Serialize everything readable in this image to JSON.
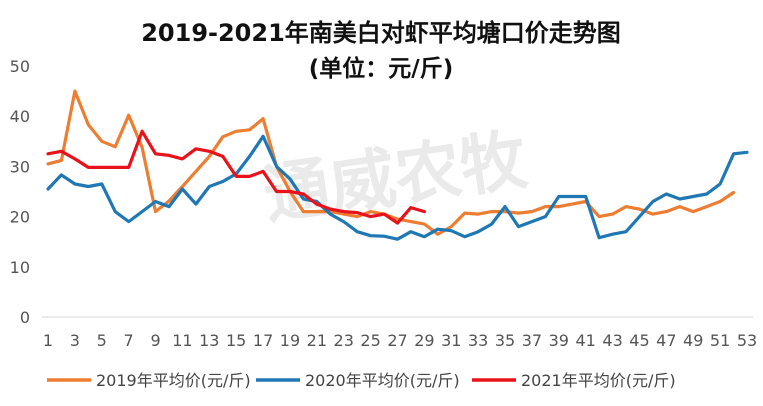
{
  "chart_data": {
    "type": "line",
    "title": "2019-2021年南美白对虾平均塘口价走势图",
    "subtitle": "(单位：元/斤)",
    "watermark": "通威农牧",
    "xlabel": "",
    "ylabel": "",
    "ylim": [
      0,
      50
    ],
    "yticks": [
      0,
      10,
      20,
      30,
      40,
      50
    ],
    "xlim": [
      1,
      53
    ],
    "xticks": [
      1,
      3,
      5,
      7,
      9,
      11,
      13,
      15,
      17,
      19,
      21,
      23,
      25,
      27,
      29,
      31,
      33,
      35,
      37,
      39,
      41,
      43,
      45,
      47,
      49,
      51,
      53
    ],
    "grid": false,
    "legend_position": "bottom",
    "series": [
      {
        "name": "2019年平均价(元/斤)",
        "color": "#ED7D31",
        "x": [
          1,
          2,
          3,
          4,
          5,
          6,
          7,
          8,
          9,
          10,
          11,
          12,
          13,
          14,
          15,
          16,
          17,
          18,
          19,
          20,
          21,
          22,
          23,
          24,
          25,
          26,
          27,
          28,
          29,
          30,
          31,
          32,
          33,
          34,
          35,
          36,
          37,
          38,
          39,
          40,
          41,
          42,
          43,
          44,
          45,
          46,
          47,
          48,
          49,
          50,
          51,
          52
        ],
        "values": [
          30.5,
          31.2,
          45.0,
          38.3,
          35.0,
          33.9,
          40.2,
          33.8,
          21.0,
          23.1,
          26.0,
          29.0,
          32.0,
          35.9,
          37.0,
          37.3,
          39.5,
          30.0,
          25.0,
          21.0,
          21.0,
          21.0,
          20.5,
          20.0,
          21.0,
          20.5,
          19.5,
          19.0,
          18.5,
          16.5,
          18.0,
          20.7,
          20.5,
          21.0,
          21.0,
          20.7,
          21.0,
          22.0,
          22.0,
          22.5,
          23.0,
          20.0,
          20.5,
          22.0,
          21.5,
          20.5,
          21.0,
          22.0,
          21.0,
          22.0,
          23.0,
          24.8
        ]
      },
      {
        "name": "2020年平均价(元/斤)",
        "color": "#1F77B4",
        "x": [
          1,
          2,
          3,
          4,
          5,
          6,
          7,
          8,
          9,
          10,
          11,
          12,
          13,
          14,
          15,
          16,
          17,
          18,
          19,
          20,
          21,
          22,
          23,
          24,
          25,
          26,
          27,
          28,
          29,
          30,
          31,
          32,
          33,
          34,
          35,
          36,
          37,
          38,
          39,
          40,
          41,
          42,
          43,
          44,
          45,
          46,
          47,
          48,
          49,
          50,
          51,
          52,
          53
        ],
        "values": [
          25.5,
          28.3,
          26.5,
          26.0,
          26.5,
          21.0,
          19.0,
          21.0,
          23.0,
          22.0,
          25.5,
          22.5,
          26.0,
          27.0,
          28.5,
          32.0,
          36.0,
          30.0,
          27.5,
          23.5,
          23.0,
          20.5,
          19.0,
          17.0,
          16.2,
          16.1,
          15.5,
          17.0,
          16.0,
          17.5,
          17.2,
          16.0,
          17.0,
          18.5,
          22.0,
          18.0,
          19.0,
          20.0,
          24.0,
          24.0,
          24.0,
          15.8,
          16.5,
          17.0,
          20.0,
          23.0,
          24.5,
          23.5,
          24.0,
          24.5,
          26.5,
          32.5,
          32.8
        ]
      },
      {
        "name": "2021年平均价(元/斤)",
        "color": "#E8131A",
        "x": [
          1,
          2,
          3,
          4,
          5,
          6,
          7,
          8,
          9,
          10,
          11,
          12,
          13,
          14,
          15,
          16,
          17,
          18,
          19,
          20,
          21,
          22,
          23,
          24,
          25,
          26,
          27,
          28,
          29
        ],
        "values": [
          32.5,
          33.0,
          31.5,
          29.8,
          29.8,
          29.8,
          29.8,
          37.0,
          32.5,
          32.2,
          31.5,
          33.5,
          33.0,
          32.0,
          28.0,
          28.0,
          29.0,
          25.0,
          25.0,
          24.5,
          22.5,
          21.5,
          21.0,
          20.8,
          20.0,
          20.5,
          18.7,
          21.8,
          21.0
        ]
      }
    ]
  }
}
